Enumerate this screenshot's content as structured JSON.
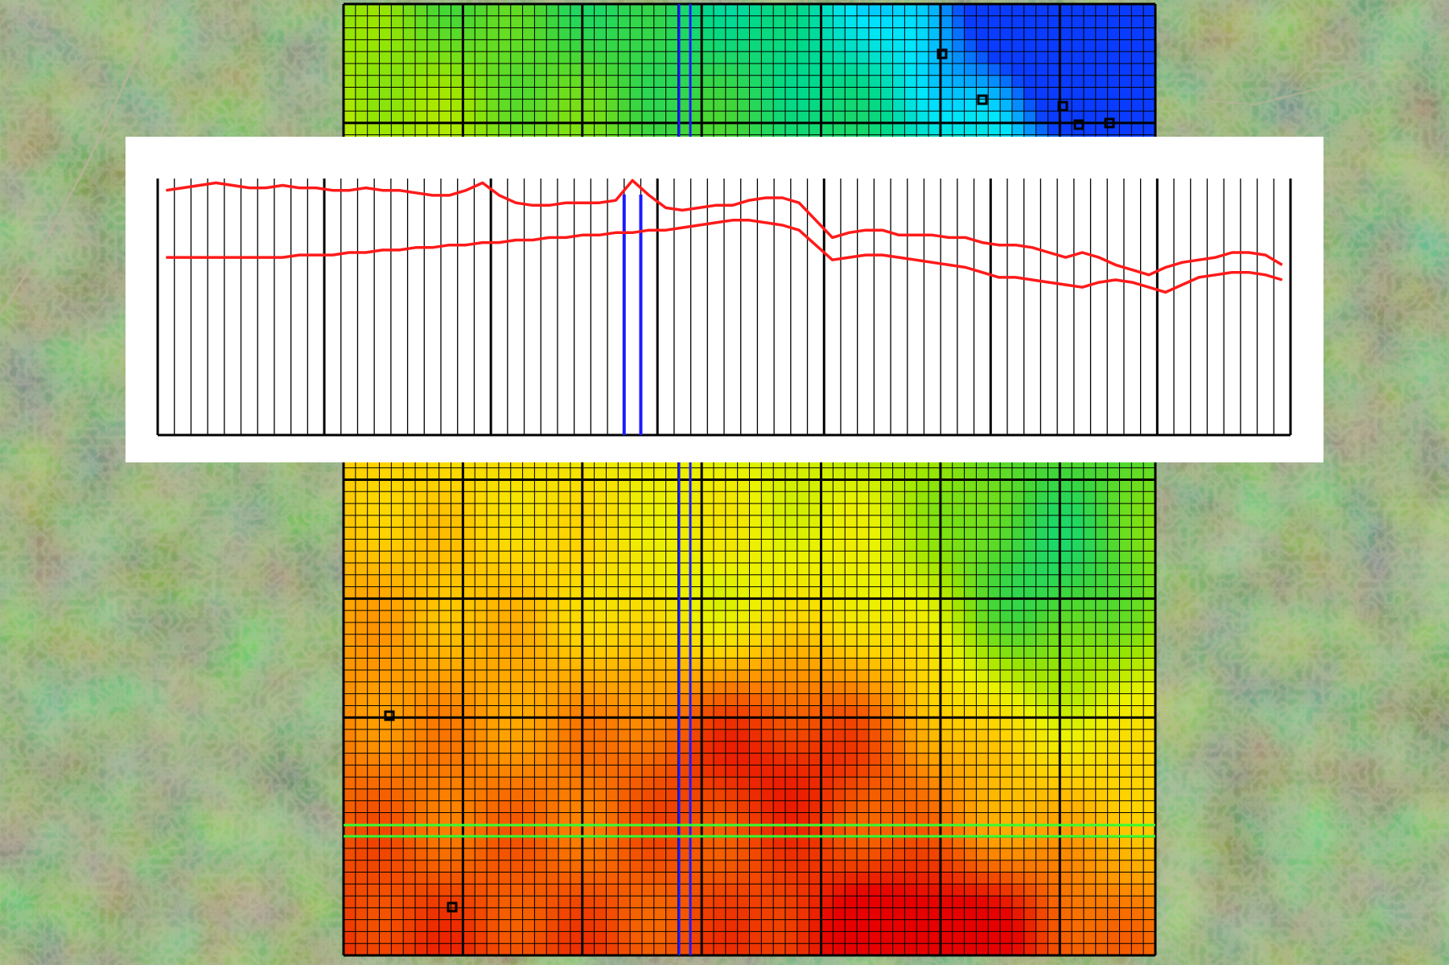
{
  "scene": {
    "kind": "groundwater model grid over satellite imagery with cross-section profile",
    "satellite_base": true
  },
  "grid": {
    "rows": 80,
    "cols": 68,
    "major_block": 10,
    "cell_line_color": "#000000",
    "major_line_color": "#000000"
  },
  "colors": {
    "ramp": [
      "#0a3cff",
      "#00e6ff",
      "#00d98a",
      "#3fd63a",
      "#9be600",
      "#ebf200",
      "#ffd200",
      "#ff9a00",
      "#f24e00",
      "#e60000"
    ],
    "surface_line": "#ff1a1a",
    "highlight_column": "#1a1aff",
    "highlight_row": "#33ff33",
    "profile_background": "#ffffff",
    "profile_grid": "#000000"
  },
  "highlights": {
    "selected_column_lines": 2,
    "selected_row_lines": 2
  },
  "marked_cells": 7,
  "cross_section": {
    "columns": 68,
    "major_every": 10,
    "selected_columns": [
      28,
      29
    ],
    "top_surface": [
      0.08,
      0.07,
      0.06,
      0.05,
      0.06,
      0.07,
      0.07,
      0.06,
      0.07,
      0.07,
      0.08,
      0.08,
      0.07,
      0.08,
      0.08,
      0.09,
      0.1,
      0.1,
      0.08,
      0.05,
      0.1,
      0.13,
      0.14,
      0.14,
      0.13,
      0.13,
      0.13,
      0.12,
      0.04,
      0.1,
      0.15,
      0.16,
      0.15,
      0.14,
      0.14,
      0.12,
      0.11,
      0.11,
      0.13,
      0.2,
      0.27,
      0.25,
      0.24,
      0.24,
      0.26,
      0.26,
      0.26,
      0.27,
      0.27,
      0.29,
      0.3,
      0.3,
      0.31,
      0.33,
      0.35,
      0.33,
      0.35,
      0.38,
      0.4,
      0.42,
      0.39,
      0.37,
      0.36,
      0.35,
      0.33,
      0.33,
      0.34,
      0.38
    ],
    "bottom_surface": [
      0.35,
      0.35,
      0.35,
      0.35,
      0.35,
      0.35,
      0.35,
      0.35,
      0.34,
      0.34,
      0.34,
      0.33,
      0.33,
      0.32,
      0.32,
      0.31,
      0.31,
      0.3,
      0.3,
      0.29,
      0.29,
      0.28,
      0.28,
      0.27,
      0.27,
      0.26,
      0.26,
      0.25,
      0.25,
      0.24,
      0.24,
      0.23,
      0.22,
      0.21,
      0.2,
      0.2,
      0.21,
      0.22,
      0.24,
      0.3,
      0.36,
      0.35,
      0.34,
      0.34,
      0.35,
      0.36,
      0.37,
      0.38,
      0.39,
      0.41,
      0.43,
      0.43,
      0.44,
      0.45,
      0.46,
      0.47,
      0.45,
      0.44,
      0.45,
      0.47,
      0.49,
      0.46,
      0.43,
      0.42,
      0.41,
      0.41,
      0.42,
      0.44
    ]
  }
}
